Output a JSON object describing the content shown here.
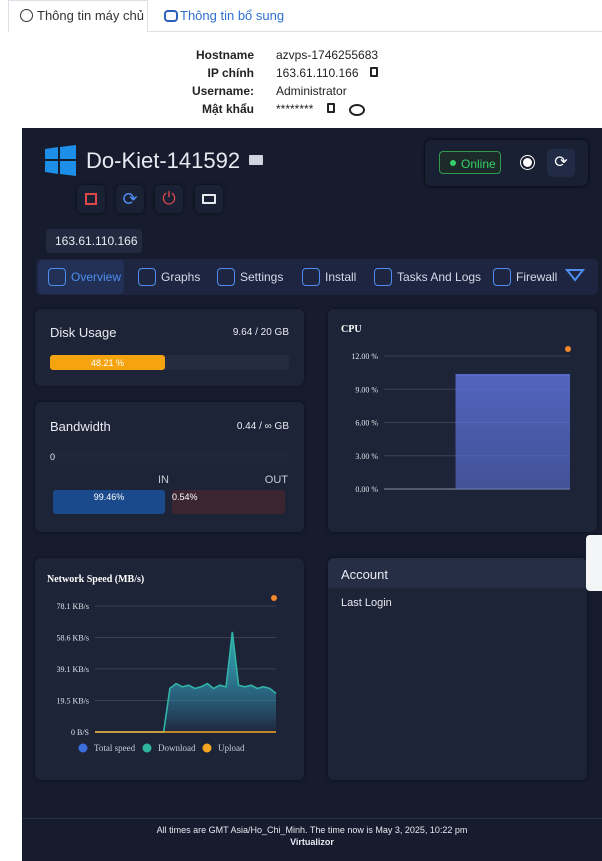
{
  "tabs": [
    "Thông tin máy chủ",
    "Thông tin bổ sung"
  ],
  "info": {
    "rows": [
      [
        "Hostname",
        "azvps-1746255683"
      ],
      [
        "IP chính",
        "163.61.110.166"
      ],
      [
        "Username:",
        "Administrator"
      ],
      [
        "Mật khẩu",
        "********"
      ]
    ]
  },
  "vps": {
    "name": "Do-Kiet-141592",
    "status": "Online",
    "ip": "163.61.110.166"
  },
  "nav": [
    "Overview",
    "Graphs",
    "Settings",
    "Install",
    "Tasks And Logs",
    "Firewall"
  ],
  "disk": {
    "title": "Disk Usage",
    "summary": "9.64 / 20 GB",
    "percent": 48.21,
    "percent_label": "48.21 %"
  },
  "bandwidth": {
    "title": "Bandwidth",
    "summary": "0.44 / ∞ GB",
    "used": "0",
    "in_title": "IN",
    "out_title": "OUT",
    "in_label": "99.46%",
    "out_label": "0.54%"
  },
  "cpu": {
    "type": "area",
    "title": "CPU",
    "ylim": [
      0,
      12
    ],
    "color": "#5b6fd6",
    "yticks": [
      {
        "value": 0,
        "label": "0.00 %"
      },
      {
        "value": 3,
        "label": "3.00 %"
      },
      {
        "value": 6,
        "label": "6.00 %"
      },
      {
        "value": 9,
        "label": "9.00 %"
      },
      {
        "value": 12,
        "label": "12.00 %"
      }
    ],
    "values": [
      null,
      null,
      null,
      null,
      null,
      10.3,
      10.3,
      10.3,
      10.3,
      10.3,
      10.3,
      10.3,
      10.3,
      10.3
    ]
  },
  "network": {
    "type": "area",
    "title": "Network Speed (MB/s)",
    "ylim": [
      0,
      78.1
    ],
    "yticks": [
      {
        "value": 0,
        "label": "0 B/S"
      },
      {
        "value": 19.5,
        "label": "19.5 KB/s"
      },
      {
        "value": 39.1,
        "label": "39.1 KB/s"
      },
      {
        "value": 58.6,
        "label": "58.6 KB/s"
      },
      {
        "value": 78.1,
        "label": "78.1 KB/s"
      }
    ],
    "series": [
      {
        "name": "Total speed",
        "color": "#3b6fe0",
        "values": [
          0,
          0,
          0,
          0,
          0,
          0,
          0,
          0,
          0,
          0,
          0,
          0,
          27,
          30,
          28,
          29,
          27,
          28,
          30,
          27,
          29,
          28,
          62,
          29,
          28,
          29,
          27,
          28,
          27,
          24
        ]
      },
      {
        "name": "Download",
        "color": "#2fb5a0",
        "values": [
          0,
          0,
          0,
          0,
          0,
          0,
          0,
          0,
          0,
          0,
          0,
          0,
          27,
          30,
          28,
          29,
          27,
          28,
          30,
          27,
          29,
          28,
          62,
          29,
          28,
          29,
          27,
          28,
          27,
          24
        ]
      },
      {
        "name": "Upload",
        "color": "#f5a623",
        "values": [
          0,
          0,
          0,
          0,
          0,
          0,
          0,
          0,
          0,
          0,
          0,
          0,
          0,
          0,
          0,
          0,
          0,
          0,
          0,
          0,
          0,
          0,
          0,
          0,
          0,
          0,
          0,
          0,
          0,
          0
        ]
      }
    ]
  },
  "account": {
    "title": "Account",
    "last_login": "Last Login"
  },
  "footer": {
    "note": "All times are GMT Asia/Ho_Chi_Minh. The time now is May 3, 2025, 10:22 pm",
    "brand": "Virtualizor"
  }
}
